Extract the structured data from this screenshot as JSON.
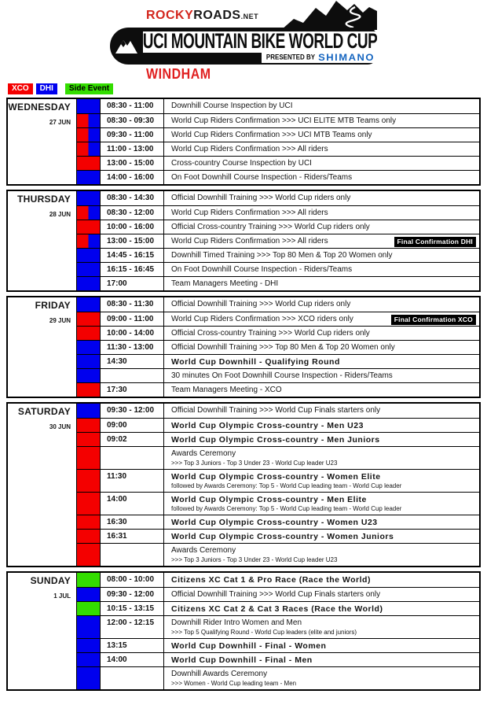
{
  "header": {
    "logo_rocky": "ROCKY",
    "logo_roads": "ROADS",
    "logo_net": ".NET",
    "banner_title": "UCI MOUNTAIN BIKE WORLD CUP",
    "presented_by": "PRESENTED BY",
    "sponsor": "SHIMANO",
    "location": "WINDHAM"
  },
  "colors": {
    "xco": "#f40000",
    "dhi": "#0000ee",
    "side": "#33dd00",
    "badge_bg": "#000000",
    "location_red": "#e02020",
    "sponsor_blue": "#1565c0"
  },
  "legend": [
    {
      "label": "XCO",
      "cat": "xco",
      "text_color": "#ffffff"
    },
    {
      "label": "DHI",
      "cat": "dhi",
      "text_color": "#ffffff"
    },
    {
      "label": "Side Event",
      "cat": "side",
      "text_color": "#000000"
    }
  ],
  "days": [
    {
      "name": "WEDNESDAY",
      "date": "27 JUN",
      "rows": [
        {
          "cat": "dhi",
          "time": "08:30 - 11:00",
          "title": "Downhill Course Inspection by UCI"
        },
        {
          "cat": "xco-dhi",
          "time": "08:30 - 09:30",
          "title": "World Cup Riders Confirmation >>> UCI ELITE MTB Teams only"
        },
        {
          "cat": "xco-dhi",
          "time": "09:30 - 11:00",
          "title": "World Cup Riders Confirmation >>> UCI MTB Teams only"
        },
        {
          "cat": "xco-dhi",
          "time": "11:00 - 13:00",
          "title": "World Cup Riders Confirmation >>> All riders"
        },
        {
          "cat": "xco",
          "time": "13:00 - 15:00",
          "title": "Cross-country Course Inspection by UCI"
        },
        {
          "cat": "dhi",
          "time": "14:00 - 16:00",
          "title": "On Foot Downhill Course Inspection - Riders/Teams"
        }
      ]
    },
    {
      "name": "THURSDAY",
      "date": "28 JUN",
      "rows": [
        {
          "cat": "dhi",
          "time": "08:30 - 14:30",
          "title": "Official Downhill Training >>> World Cup riders only"
        },
        {
          "cat": "xco-dhi",
          "time": "08:30 - 12:00",
          "title": "World Cup Riders Confirmation >>> All riders"
        },
        {
          "cat": "xco",
          "time": "10:00 - 16:00",
          "title": "Official Cross-country Training >>> World Cup riders only"
        },
        {
          "cat": "xco-dhi",
          "time": "13:00 - 15:00",
          "title": "World Cup Riders Confirmation >>> All riders",
          "badge": "Final Confirmation DHI"
        },
        {
          "cat": "dhi",
          "time": "14:45 - 16:15",
          "title": "Downhill Timed Training >>> Top 80 Men & Top 20 Women only"
        },
        {
          "cat": "dhi",
          "time": "16:15 - 16:45",
          "title": "On Foot Downhill Course Inspection - Riders/Teams"
        },
        {
          "cat": "dhi",
          "time": "17:00",
          "title": "Team Managers Meeting - DHI"
        }
      ]
    },
    {
      "name": "FRIDAY",
      "date": "29 JUN",
      "rows": [
        {
          "cat": "dhi",
          "time": "08:30 - 11:30",
          "title": "Official Downhill Training >>> World Cup riders only"
        },
        {
          "cat": "xco",
          "time": "09:00 - 11:00",
          "title": "World Cup Riders Confirmation >>> XCO riders only",
          "badge": "Final Confirmation XCO"
        },
        {
          "cat": "xco",
          "time": "10:00 - 14:00",
          "title": "Official Cross-country Training >>> World Cup riders only"
        },
        {
          "cat": "dhi",
          "time": "11:30 - 13:00",
          "title": "Official Downhill Training >>> Top 80 Men & Top 20 Women only"
        },
        {
          "cat": "dhi",
          "time": "14:30",
          "title": "World Cup Downhill - Qualifying Round",
          "bold": true
        },
        {
          "cat": "dhi",
          "time": "",
          "title": "30 minutes On Foot Downhill Course Inspection - Riders/Teams"
        },
        {
          "cat": "xco",
          "time": "17:30",
          "title": "Team Managers Meeting - XCO"
        }
      ]
    },
    {
      "name": "SATURDAY",
      "date": "30 JUN",
      "rows": [
        {
          "cat": "dhi",
          "time": "09:30 - 12:00",
          "title": "Official Downhill Training >>> World Cup Finals starters only"
        },
        {
          "cat": "xco",
          "time": "09:00",
          "title": "World Cup Olympic Cross-country - Men U23",
          "bold": true
        },
        {
          "cat": "xco",
          "time": "09:02",
          "title": "World Cup Olympic Cross-country - Men Juniors",
          "bold": true
        },
        {
          "cat": "xco",
          "time": "",
          "title": "Awards Ceremony",
          "sub": ">>> Top 3 Juniors - Top 3 Under 23 - World Cup leader U23"
        },
        {
          "cat": "xco",
          "time": "11:30",
          "title": "World Cup Olympic Cross-country - Women Elite",
          "bold": true,
          "sub": "followed by Awards Ceremony: Top 5 - World Cup leading team - World Cup leader"
        },
        {
          "cat": "xco",
          "time": "14:00",
          "title": "World Cup Olympic Cross-country - Men Elite",
          "bold": true,
          "sub": "followed by Awards Ceremony: Top 5 - World Cup leading team - World Cup leader"
        },
        {
          "cat": "xco",
          "time": "16:30",
          "title": "World Cup Olympic Cross-country - Women U23",
          "bold": true
        },
        {
          "cat": "xco",
          "time": "16:31",
          "title": "World Cup Olympic Cross-country - Women Juniors",
          "bold": true
        },
        {
          "cat": "xco",
          "time": "",
          "title": "Awards Ceremony",
          "sub": ">>> Top 3 Juniors - Top 3 Under 23 - World Cup leader U23"
        }
      ]
    },
    {
      "name": "SUNDAY",
      "date": "1 JUL",
      "rows": [
        {
          "cat": "side",
          "time": "08:00 - 10:00",
          "title": "Citizens XC Cat 1 & Pro Race (Race the World)",
          "bold": true
        },
        {
          "cat": "dhi",
          "time": "09:30 - 12:00",
          "title": "Official Downhill Training >>> World Cup Finals starters only"
        },
        {
          "cat": "side",
          "time": "10:15 - 13:15",
          "title": "Citizens XC Cat 2 & Cat 3 Races (Race the World)",
          "bold": true
        },
        {
          "cat": "dhi",
          "time": "12:00 - 12:15",
          "title": "Downhill Rider Intro Women and Men",
          "sub": ">>> Top 5 Qualifying Round - World Cup leaders (elite and juniors)"
        },
        {
          "cat": "dhi",
          "time": "13:15",
          "title": "World Cup Downhill - Final - Women",
          "bold": true
        },
        {
          "cat": "dhi",
          "time": "14:00",
          "title": "World Cup Downhill - Final - Men",
          "bold": true
        },
        {
          "cat": "dhi",
          "time": "",
          "title": "Downhill Awards Ceremony",
          "sub": ">>> Women - World Cup leading team - Men"
        }
      ]
    }
  ]
}
